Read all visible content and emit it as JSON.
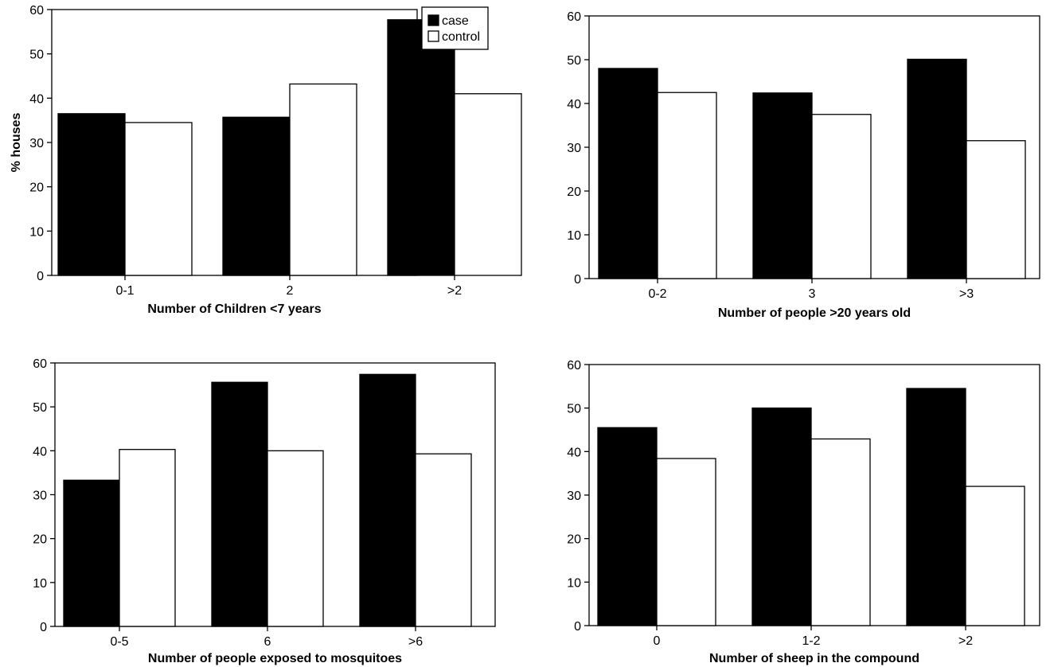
{
  "legend": {
    "entries": [
      {
        "label": "case",
        "color": "#000000"
      },
      {
        "label": "control",
        "color": "#ffffff"
      }
    ]
  },
  "chart_data": [
    {
      "type": "bar",
      "categories": [
        "0-1",
        "2",
        ">2"
      ],
      "series": [
        {
          "name": "case",
          "values": [
            36.5,
            35.7,
            57.7
          ]
        },
        {
          "name": "control",
          "values": [
            34.5,
            43.2,
            41.0
          ]
        }
      ],
      "xlabel": "Number of Children <7 years",
      "ylabel": "% houses",
      "ylim": [
        0,
        60
      ],
      "yticks": [
        "0",
        "10",
        "20",
        "30",
        "40",
        "50",
        "60"
      ],
      "legend_position": "top-right"
    },
    {
      "type": "bar",
      "categories": [
        "0-2",
        "3",
        ">3"
      ],
      "series": [
        {
          "name": "case",
          "values": [
            48.0,
            42.4,
            50.1
          ]
        },
        {
          "name": "control",
          "values": [
            42.5,
            37.5,
            31.5
          ]
        }
      ],
      "xlabel": "Number of people >20 years old",
      "ylabel": "",
      "ylim": [
        0,
        60
      ],
      "yticks": [
        "0",
        "10",
        "20",
        "30",
        "40",
        "50",
        "60"
      ]
    },
    {
      "type": "bar",
      "categories": [
        "0-5",
        "6",
        ">6"
      ],
      "series": [
        {
          "name": "case",
          "values": [
            33.3,
            55.6,
            57.4
          ]
        },
        {
          "name": "control",
          "values": [
            40.3,
            40.0,
            39.3
          ]
        }
      ],
      "xlabel": "Number of people exposed to mosquitoes",
      "ylabel": "",
      "ylim": [
        0,
        60
      ],
      "yticks": [
        "0",
        "10",
        "20",
        "30",
        "40",
        "50",
        "60"
      ]
    },
    {
      "type": "bar",
      "categories": [
        "0",
        "1-2",
        ">2"
      ],
      "series": [
        {
          "name": "case",
          "values": [
            45.5,
            50.0,
            54.5
          ]
        },
        {
          "name": "control",
          "values": [
            38.4,
            42.9,
            32.0
          ]
        }
      ],
      "xlabel": "Number of sheep in the compound",
      "ylabel": "",
      "ylim": [
        0,
        60
      ],
      "yticks": [
        "0",
        "10",
        "20",
        "30",
        "40",
        "50",
        "60"
      ]
    }
  ]
}
